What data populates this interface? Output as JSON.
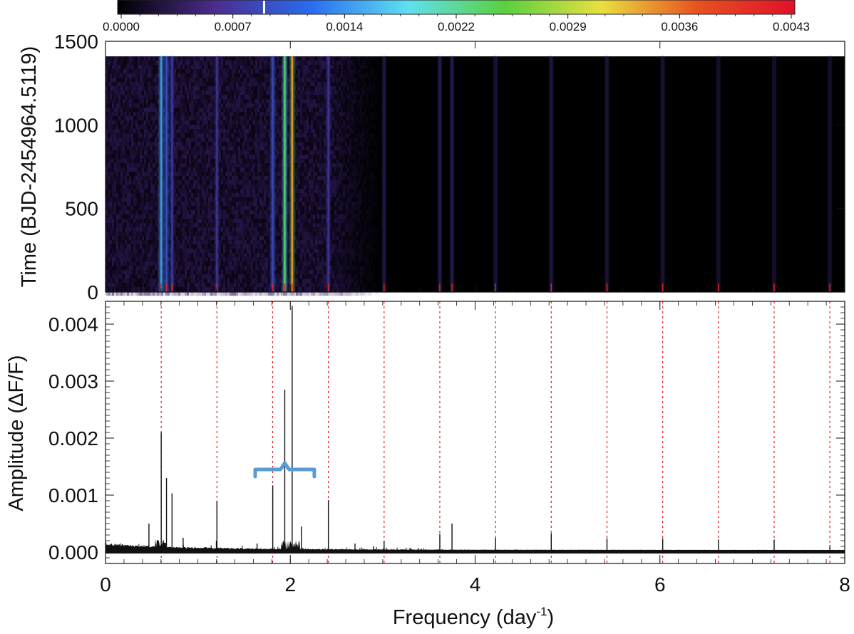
{
  "chart_data": [
    {
      "panel": "colorbar",
      "type": "heatmap",
      "colormap": "dark-purple-blue-cyan-green-yellow-red",
      "colormap_stops": [
        "#000000",
        "#4b2c8c",
        "#2a6cf0",
        "#5fe0f0",
        "#5ad040",
        "#e8e040",
        "#e85020",
        "#e0102a"
      ],
      "range": [
        0.0,
        0.0043
      ],
      "tick_labels": [
        "0.0000",
        "0.0007",
        "0.0014",
        "0.0022",
        "0.0029",
        "0.0036",
        "0.0043"
      ],
      "marker_value": 0.00093
    },
    {
      "panel": "time-frequency",
      "type": "heatmap",
      "title": "",
      "ylabel": "Time (BJD-2454964.5119)",
      "xlim": [
        0,
        8
      ],
      "ylim": [
        0,
        1500
      ],
      "data_extent_y": [
        0,
        1410
      ],
      "y_tick_labels": [
        "0",
        "500",
        "1000",
        "1500"
      ],
      "background_color": "#000000",
      "noise_region_x": [
        0,
        3.0
      ],
      "ridges": [
        {
          "x": 0.603,
          "level": 0.0021
        },
        {
          "x": 0.66,
          "level": 0.0013
        },
        {
          "x": 0.72,
          "level": 0.001
        },
        {
          "x": 1.206,
          "level": 0.0009
        },
        {
          "x": 1.81,
          "level": 0.0012
        },
        {
          "x": 1.94,
          "level": 0.0029
        },
        {
          "x": 2.02,
          "level": 0.0043
        },
        {
          "x": 2.412,
          "level": 0.0009
        },
        {
          "x": 3.015,
          "level": 0.0004
        },
        {
          "x": 3.618,
          "level": 0.0005
        },
        {
          "x": 3.75,
          "level": 0.0005
        },
        {
          "x": 4.221,
          "level": 0.0003
        },
        {
          "x": 4.824,
          "level": 0.0004
        },
        {
          "x": 5.427,
          "level": 0.0003
        },
        {
          "x": 6.03,
          "level": 0.0003
        },
        {
          "x": 6.633,
          "level": 0.0002
        },
        {
          "x": 7.236,
          "level": 0.0002
        },
        {
          "x": 7.839,
          "level": 0.0002
        }
      ]
    },
    {
      "panel": "periodogram",
      "type": "line",
      "title": "",
      "xlabel_main": "Frequency (day",
      "xlabel_sup": "-1",
      "xlabel_end": ")",
      "ylabel": "Amplitude (ΔF/F)",
      "xlim": [
        0,
        8
      ],
      "ylim": [
        -0.0002,
        0.0044
      ],
      "x_tick_labels": [
        "0",
        "2",
        "4",
        "6",
        "8"
      ],
      "x_ticks": [
        0,
        2,
        4,
        6,
        8
      ],
      "y_tick_labels": [
        "0.000",
        "0.001",
        "0.002",
        "0.003",
        "0.004"
      ],
      "y_ticks": [
        0,
        0.001,
        0.002,
        0.003,
        0.004
      ],
      "harmonic_spacing": 0.603,
      "harmonic_lines_x": [
        0.603,
        1.206,
        1.809,
        2.412,
        3.015,
        3.618,
        4.221,
        4.824,
        5.427,
        6.03,
        6.633,
        7.236,
        7.839
      ],
      "harmonic_line_color": "#e02020",
      "series_color": "#111111",
      "peaks": [
        {
          "x": 0.47,
          "y": 0.0005
        },
        {
          "x": 0.603,
          "y": 0.0021
        },
        {
          "x": 0.66,
          "y": 0.0013
        },
        {
          "x": 0.72,
          "y": 0.00103
        },
        {
          "x": 0.84,
          "y": 0.00025
        },
        {
          "x": 1.2,
          "y": 0.0002
        },
        {
          "x": 1.206,
          "y": 0.0009
        },
        {
          "x": 1.64,
          "y": 0.00015
        },
        {
          "x": 1.81,
          "y": 0.00117
        },
        {
          "x": 1.94,
          "y": 0.00285
        },
        {
          "x": 2.02,
          "y": 0.00432
        },
        {
          "x": 2.12,
          "y": 0.00045
        },
        {
          "x": 2.412,
          "y": 0.00091
        },
        {
          "x": 2.7,
          "y": 0.00015
        },
        {
          "x": 2.9,
          "y": 0.0001
        },
        {
          "x": 3.015,
          "y": 0.0002
        },
        {
          "x": 3.618,
          "y": 0.00032
        },
        {
          "x": 3.75,
          "y": 0.0005
        },
        {
          "x": 4.221,
          "y": 0.00025
        },
        {
          "x": 4.824,
          "y": 0.00033
        },
        {
          "x": 5.427,
          "y": 0.00024
        },
        {
          "x": 6.03,
          "y": 0.00024
        },
        {
          "x": 6.633,
          "y": 0.00022
        },
        {
          "x": 7.236,
          "y": 0.00022
        },
        {
          "x": 7.839,
          "y": 0.00012
        }
      ],
      "annotation": {
        "type": "bracket",
        "color": "#5b9bd5",
        "x_range": [
          1.62,
          2.26
        ],
        "y": 0.00145
      }
    }
  ]
}
